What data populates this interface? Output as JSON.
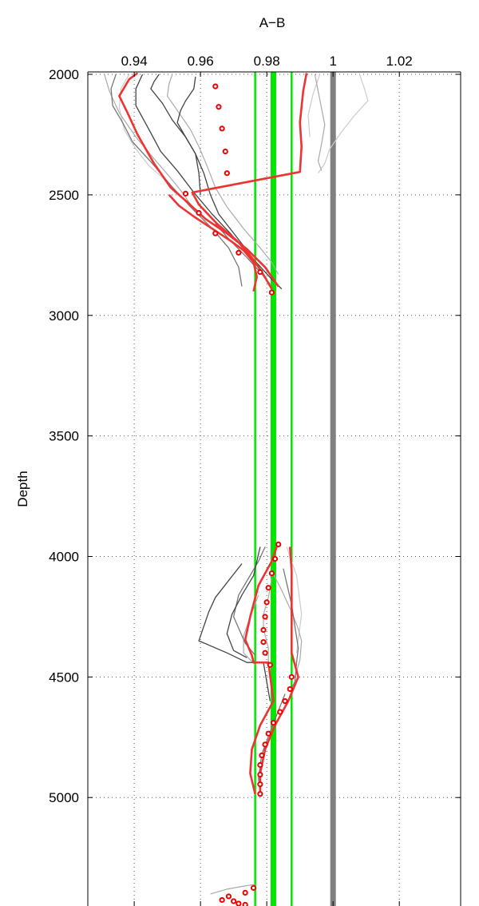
{
  "chart_data": {
    "type": "line",
    "title": "A−B",
    "xlabel": "A−B",
    "ylabel": "Depth",
    "xlim": [
      0.926,
      1.0385
    ],
    "ylim": [
      5450,
      1990
    ],
    "y_reversed": true,
    "grid": true,
    "x_axis_position": "top",
    "x_ticks": [
      0.94,
      0.96,
      0.98,
      1,
      1.02
    ],
    "x_tick_labels": [
      "0.94",
      "0.96",
      "0.98",
      "1",
      "1.02"
    ],
    "y_ticks": [
      2000,
      2500,
      3000,
      3500,
      4000,
      4500,
      5000
    ],
    "y_tick_labels": [
      "2000",
      "2500",
      "3000",
      "3500",
      "4000",
      "4500",
      "5000"
    ],
    "colors": {
      "red": "#ee3333",
      "marker": "#ee0000",
      "green": "#00e600",
      "reference": "#808080",
      "dark_gray": "#444444",
      "mid_gray": "#777777",
      "light_gray": "#aaaaaa",
      "pale_gray": "#cccccc",
      "grid": "#555555"
    },
    "reference_lines": [
      {
        "name": "reference",
        "x": 1.0,
        "color": "#808080",
        "width": "thick"
      },
      {
        "name": "mean",
        "x": 0.982,
        "color": "#00e600",
        "width": "thick"
      },
      {
        "name": "lower-bound",
        "x": 0.9765,
        "color": "#00e600",
        "width": "thin"
      },
      {
        "name": "upper-bound",
        "x": 0.9875,
        "color": "#00e600",
        "width": "thin"
      }
    ],
    "series": [
      {
        "style": "red-line",
        "segments": [
          [
            [
              0.941,
              1995
            ],
            [
              0.9385,
              2020
            ],
            [
              0.9355,
              2090
            ],
            [
              0.938,
              2160
            ],
            [
              0.941,
              2250
            ],
            [
              0.946,
              2370
            ],
            [
              0.951,
              2470
            ],
            [
              0.956,
              2530
            ],
            [
              0.9615,
              2600
            ],
            [
              0.968,
              2660
            ],
            [
              0.974,
              2725
            ],
            [
              0.9795,
              2800
            ],
            [
              0.9835,
              2880
            ]
          ],
          [
            [
              0.992,
              1995
            ],
            [
              0.991,
              2070
            ],
            [
              0.99,
              2200
            ],
            [
              0.9905,
              2300
            ],
            [
              0.99,
              2405
            ],
            [
              0.9575,
              2490
            ],
            [
              0.9595,
              2540
            ],
            [
              0.965,
              2620
            ],
            [
              0.971,
              2690
            ],
            [
              0.9755,
              2760
            ],
            [
              0.9785,
              2820
            ],
            [
              0.9815,
              2890
            ]
          ],
          [
            [
              0.9505,
              2500
            ],
            [
              0.9535,
              2545
            ],
            [
              0.958,
              2590
            ],
            [
              0.9635,
              2640
            ],
            [
              0.969,
              2690
            ],
            [
              0.973,
              2730
            ],
            [
              0.976,
              2780
            ],
            [
              0.977,
              2840
            ],
            [
              0.976,
              2900
            ]
          ],
          [
            [
              0.983,
              3960
            ],
            [
              0.9815,
              4020
            ],
            [
              0.9775,
              4120
            ],
            [
              0.975,
              4250
            ],
            [
              0.9735,
              4345
            ],
            [
              0.9755,
              4410
            ],
            [
              0.976,
              4440
            ],
            [
              0.9805,
              4440
            ],
            [
              0.982,
              4600
            ],
            [
              0.978,
              4700
            ],
            [
              0.9755,
              4800
            ],
            [
              0.975,
              4900
            ],
            [
              0.9765,
              4985
            ]
          ],
          [
            [
              0.987,
              3960
            ],
            [
              0.9875,
              4060
            ],
            [
              0.9875,
              4180
            ],
            [
              0.9875,
              4300
            ],
            [
              0.9875,
              4400
            ],
            [
              0.9895,
              4500
            ],
            [
              0.9865,
              4600
            ],
            [
              0.9825,
              4700
            ],
            [
              0.9795,
              4800
            ],
            [
              0.978,
              4900
            ],
            [
              0.978,
              4985
            ]
          ]
        ]
      },
      {
        "style": "dark-gray",
        "segments": [
          [
            [
              0.9425,
              2000
            ],
            [
              0.9405,
              2060
            ],
            [
              0.9405,
              2130
            ],
            [
              0.9445,
              2230
            ],
            [
              0.948,
              2320
            ],
            [
              0.953,
              2400
            ],
            [
              0.958,
              2490
            ],
            [
              0.9635,
              2580
            ],
            [
              0.969,
              2660
            ],
            [
              0.9735,
              2730
            ],
            [
              0.9775,
              2790
            ],
            [
              0.9815,
              2850
            ],
            [
              0.9845,
              2890
            ]
          ],
          [
            [
              0.9585,
              2010
            ],
            [
              0.958,
              2060
            ],
            [
              0.9555,
              2110
            ],
            [
              0.954,
              2150
            ],
            [
              0.953,
              2200
            ],
            [
              0.9555,
              2260
            ],
            [
              0.9585,
              2330
            ],
            [
              0.9595,
              2410
            ],
            [
              0.96,
              2500
            ]
          ],
          [
            [
              0.9475,
              2000
            ],
            [
              0.946,
              2030
            ],
            [
              0.945,
              2060
            ],
            [
              0.9485,
              2120
            ],
            [
              0.9515,
              2190
            ],
            [
              0.9555,
              2260
            ],
            [
              0.9585,
              2330
            ],
            [
              0.961,
              2410
            ],
            [
              0.963,
              2500
            ],
            [
              0.9655,
              2580
            ],
            [
              0.9695,
              2650
            ],
            [
              0.974,
              2730
            ],
            [
              0.977,
              2790
            ],
            [
              0.98,
              2850
            ]
          ],
          [
            [
              0.9725,
              4030
            ],
            [
              0.9645,
              4170
            ],
            [
              0.9625,
              4230
            ],
            [
              0.9595,
              4350
            ],
            [
              0.968,
              4400
            ],
            [
              0.974,
              4440
            ],
            [
              0.979,
              4440
            ],
            [
              0.981,
              4600
            ]
          ],
          [
            [
              0.978,
              3960
            ],
            [
              0.976,
              4080
            ],
            [
              0.9725,
              4160
            ],
            [
              0.9695,
              4240
            ],
            [
              0.968,
              4320
            ],
            [
              0.97,
              4390
            ],
            [
              0.974,
              4420
            ]
          ]
        ]
      },
      {
        "style": "mid-gray",
        "segments": [
          [
            [
              0.9345,
              2000
            ],
            [
              0.933,
              2060
            ],
            [
              0.9335,
              2130
            ],
            [
              0.9365,
              2200
            ],
            [
              0.9395,
              2280
            ],
            [
              0.9455,
              2370
            ],
            [
              0.951,
              2460
            ],
            [
              0.957,
              2550
            ],
            [
              0.9635,
              2640
            ],
            [
              0.9685,
              2720
            ],
            [
              0.9715,
              2800
            ],
            [
              0.9725,
              2880
            ]
          ],
          [
            [
              0.9645,
              2620
            ],
            [
              0.969,
              2690
            ],
            [
              0.974,
              2760
            ],
            [
              0.978,
              2820
            ],
            [
              0.981,
              2870
            ]
          ],
          [
            [
              0.9795,
              3960
            ],
            [
              0.9775,
              4020
            ],
            [
              0.9715,
              4160
            ],
            [
              0.97,
              4250
            ],
            [
              0.9735,
              4360
            ],
            [
              0.9765,
              4410
            ]
          ],
          [
            [
              0.985,
              4050
            ],
            [
              0.9875,
              4200
            ],
            [
              0.9885,
              4290
            ],
            [
              0.9895,
              4380
            ],
            [
              0.989,
              4440
            ],
            [
              0.9885,
              4520
            ],
            [
              0.987,
              4560
            ]
          ],
          [
            [
              0.9855,
              4570
            ],
            [
              0.9815,
              4710
            ],
            [
              0.9785,
              4820
            ],
            [
              0.9775,
              4920
            ],
            [
              0.978,
              4985
            ]
          ]
        ]
      },
      {
        "style": "light-gray",
        "segments": [
          [
            [
              0.931,
              2000
            ],
            [
              0.9325,
              2070
            ],
            [
              0.9355,
              2160
            ],
            [
              0.9405,
              2260
            ],
            [
              0.946,
              2350
            ],
            [
              0.951,
              2430
            ],
            [
              0.9545,
              2490
            ],
            [
              0.958,
              2560
            ]
          ],
          [
            [
              0.9515,
              2000
            ],
            [
              0.9505,
              2040
            ],
            [
              0.95,
              2090
            ],
            [
              0.9535,
              2160
            ],
            [
              0.957,
              2230
            ],
            [
              0.9595,
              2300
            ],
            [
              0.962,
              2380
            ],
            [
              0.9645,
              2470
            ],
            [
              0.968,
              2550
            ],
            [
              0.973,
              2640
            ],
            [
              0.978,
              2720
            ],
            [
              0.9815,
              2780
            ],
            [
              0.9835,
              2830
            ]
          ],
          [
            [
              0.9945,
              2000
            ],
            [
              0.9955,
              2070
            ],
            [
              0.9965,
              2140
            ],
            [
              0.9975,
              2210
            ],
            [
              0.9965,
              2290
            ],
            [
              0.9955,
              2360
            ],
            [
              0.9965,
              2400
            ]
          ],
          [
            [
              0.9815,
              4060
            ],
            [
              0.9845,
              4140
            ],
            [
              0.9875,
              4230
            ],
            [
              0.9895,
              4300
            ],
            [
              0.9905,
              4350
            ],
            [
              0.99,
              4430
            ],
            [
              0.9885,
              4500
            ]
          ],
          [
            [
              0.9815,
              4090
            ],
            [
              0.9805,
              4170
            ],
            [
              0.979,
              4240
            ],
            [
              0.979,
              4300
            ],
            [
              0.9805,
              4380
            ],
            [
              0.9805,
              4450
            ]
          ],
          [
            [
              0.9775,
              4160
            ],
            [
              0.9745,
              4270
            ],
            [
              0.973,
              4330
            ],
            [
              0.973,
              4400
            ],
            [
              0.9765,
              4450
            ]
          ],
          [
            [
              0.963,
              5400
            ],
            [
              0.968,
              5380
            ],
            [
              0.972,
              5370
            ],
            [
              0.9765,
              5360
            ]
          ]
        ]
      },
      {
        "style": "pale-gray",
        "segments": [
          [
            [
              0.9385,
              2000
            ],
            [
              0.936,
              2060
            ],
            [
              0.9355,
              2140
            ],
            [
              0.937,
              2230
            ],
            [
              0.9405,
              2310
            ],
            [
              0.9445,
              2380
            ],
            [
              0.9495,
              2440
            ]
          ],
          [
            [
              1.008,
              2000
            ],
            [
              1.0095,
              2060
            ],
            [
              1.0105,
              2110
            ],
            [
              1.0065,
              2170
            ],
            [
              1.0025,
              2240
            ],
            [
              0.999,
              2310
            ],
            [
              0.9975,
              2370
            ],
            [
              0.9955,
              2410
            ]
          ],
          [
            [
              0.996,
              2000
            ],
            [
              0.994,
              2080
            ],
            [
              0.9925,
              2170
            ],
            [
              0.993,
              2260
            ]
          ],
          [
            [
              0.986,
              3960
            ],
            [
              0.989,
              4080
            ],
            [
              0.9905,
              4240
            ],
            [
              0.989,
              4400
            ]
          ]
        ]
      }
    ],
    "markers": {
      "style": "red-open-circle",
      "points": [
        [
          0.9645,
          2050
        ],
        [
          0.9655,
          2135
        ],
        [
          0.9665,
          2225
        ],
        [
          0.9675,
          2320
        ],
        [
          0.968,
          2410
        ],
        [
          0.9555,
          2495
        ],
        [
          0.9595,
          2575
        ],
        [
          0.9645,
          2660
        ],
        [
          0.9715,
          2740
        ],
        [
          0.978,
          2820
        ],
        [
          0.9815,
          2905
        ],
        [
          0.9835,
          3950
        ],
        [
          0.9825,
          4010
        ],
        [
          0.9815,
          4070
        ],
        [
          0.9805,
          4130
        ],
        [
          0.98,
          4190
        ],
        [
          0.9795,
          4250
        ],
        [
          0.979,
          4305
        ],
        [
          0.979,
          4355
        ],
        [
          0.9795,
          4400
        ],
        [
          0.981,
          4450
        ],
        [
          0.9875,
          4500
        ],
        [
          0.987,
          4550
        ],
        [
          0.9855,
          4600
        ],
        [
          0.984,
          4645
        ],
        [
          0.982,
          4690
        ],
        [
          0.9805,
          4735
        ],
        [
          0.9795,
          4780
        ],
        [
          0.9785,
          4825
        ],
        [
          0.978,
          4865
        ],
        [
          0.978,
          4905
        ],
        [
          0.978,
          4945
        ],
        [
          0.978,
          4985
        ],
        [
          0.976,
          5375
        ],
        [
          0.9735,
          5395
        ],
        [
          0.9685,
          5410
        ],
        [
          0.9665,
          5425
        ],
        [
          0.97,
          5430
        ],
        [
          0.9715,
          5440
        ],
        [
          0.9735,
          5445
        ]
      ]
    }
  }
}
